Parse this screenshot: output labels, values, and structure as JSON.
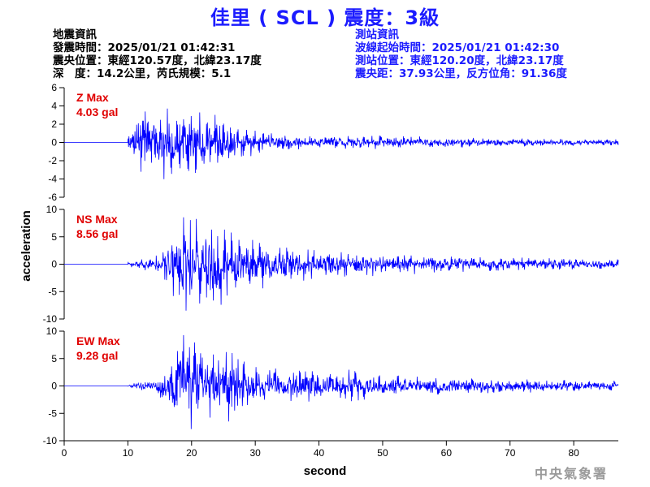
{
  "page": {
    "title": "佳里 ( SCL ) 震度：3級",
    "agency": "中央氣象署"
  },
  "earthquake_info": {
    "heading": "地震資訊",
    "origin_time": "發震時間：2025/01/21 01:42:31",
    "epicenter": "震央位置：東經120.57度，北緯23.17度",
    "depth_magnitude": "深　度：14.2公里，芮氏規模：5.1"
  },
  "station_info": {
    "heading": "測站資訊",
    "wave_start": "波線起始時間：2025/01/21 01:42:30",
    "location": "測站位置：東經120.20度，北緯23.17度",
    "distance": "震央距：37.93公里，反方位角：91.36度"
  },
  "colors": {
    "trace": "#0000ff",
    "title": "#1c1cff",
    "label": "#e00000",
    "axis": "#000000"
  },
  "chart_data": {
    "type": "line",
    "xlabel": "second",
    "ylabel": "acceleration",
    "xlim": [
      0,
      87
    ],
    "x_ticks": [
      0,
      10,
      20,
      30,
      40,
      50,
      60,
      70,
      80
    ],
    "panels": [
      {
        "component": "Z",
        "label": "Z Max",
        "value_label": "4.03 gal",
        "peak": 4.03,
        "ylim": [
          -6,
          6
        ],
        "y_ticks": [
          6,
          4,
          2,
          0,
          -2,
          -4,
          -6
        ],
        "envelope": [
          [
            0,
            0
          ],
          [
            9.9,
            0
          ],
          [
            10,
            0.6
          ],
          [
            11,
            1.6
          ],
          [
            12,
            2.8
          ],
          [
            13,
            3.4
          ],
          [
            15,
            3.0
          ],
          [
            17,
            2.8
          ],
          [
            19,
            3.0
          ],
          [
            21,
            2.6
          ],
          [
            24,
            2.3
          ],
          [
            27,
            1.6
          ],
          [
            30,
            1.0
          ],
          [
            35,
            0.7
          ],
          [
            40,
            0.6
          ],
          [
            50,
            0.55
          ],
          [
            60,
            0.45
          ],
          [
            70,
            0.35
          ],
          [
            87,
            0.25
          ]
        ]
      },
      {
        "component": "NS",
        "label": "NS Max",
        "value_label": "8.56 gal",
        "peak": 8.56,
        "ylim": [
          -10,
          10
        ],
        "y_ticks": [
          10,
          5,
          0,
          -5,
          -10
        ],
        "envelope": [
          [
            0,
            0
          ],
          [
            9.9,
            0
          ],
          [
            10,
            0.3
          ],
          [
            13,
            0.9
          ],
          [
            15,
            1.6
          ],
          [
            17,
            4.5
          ],
          [
            18.5,
            6.5
          ],
          [
            20,
            7.6
          ],
          [
            22,
            6.4
          ],
          [
            24,
            6.2
          ],
          [
            26,
            5.0
          ],
          [
            29,
            4.0
          ],
          [
            32,
            3.2
          ],
          [
            36,
            2.5
          ],
          [
            40,
            2.0
          ],
          [
            50,
            1.6
          ],
          [
            60,
            1.3
          ],
          [
            70,
            1.0
          ],
          [
            87,
            0.7
          ]
        ]
      },
      {
        "component": "EW",
        "label": "EW Max",
        "value_label": "9.28 gal",
        "peak": 9.28,
        "ylim": [
          -10,
          10
        ],
        "y_ticks": [
          10,
          5,
          0,
          -5,
          -10
        ],
        "envelope": [
          [
            0,
            0
          ],
          [
            9.9,
            0
          ],
          [
            10,
            0.2
          ],
          [
            12,
            0.6
          ],
          [
            14,
            1.2
          ],
          [
            16,
            2.8
          ],
          [
            17.5,
            5.0
          ],
          [
            18.5,
            8.0
          ],
          [
            20,
            6.5
          ],
          [
            22,
            4.8
          ],
          [
            24,
            5.0
          ],
          [
            26,
            5.4
          ],
          [
            28,
            4.0
          ],
          [
            31,
            2.8
          ],
          [
            35,
            2.2
          ],
          [
            40,
            2.0
          ],
          [
            45,
            2.2
          ],
          [
            50,
            1.6
          ],
          [
            60,
            1.2
          ],
          [
            70,
            1.0
          ],
          [
            87,
            0.7
          ]
        ]
      }
    ]
  }
}
